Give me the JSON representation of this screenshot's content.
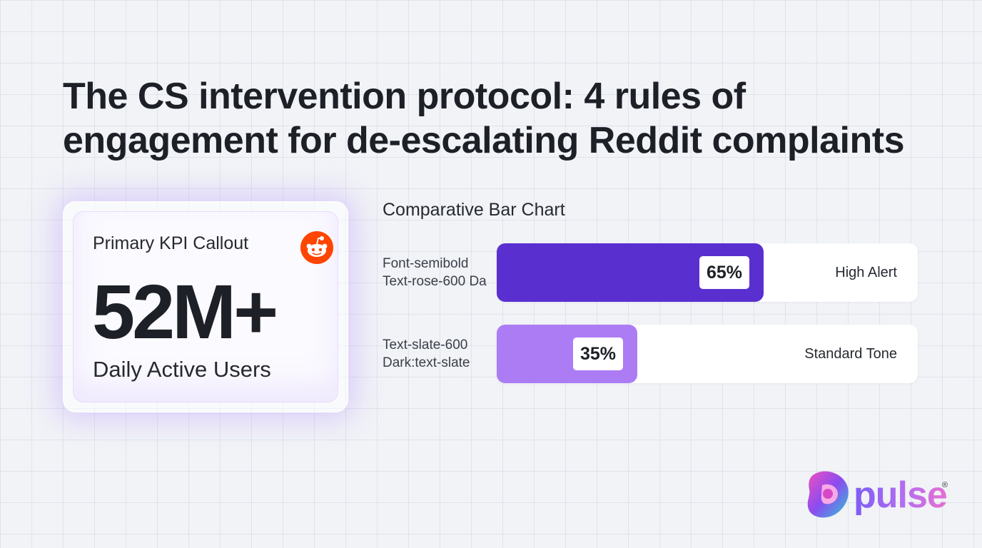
{
  "headline": {
    "line1": "The CS intervention protocol: 4 rules of",
    "line2": "engagement for de-escalating Reddit complaints"
  },
  "kpi": {
    "label": "Primary KPI Callout",
    "value": "52M+",
    "caption": "Daily Active Users",
    "icon": "reddit-icon",
    "icon_color": "#ff4500"
  },
  "chart_data": {
    "type": "bar",
    "title": "Comparative Bar Chart",
    "orientation": "horizontal",
    "unit": "%",
    "xlim": [
      0,
      100
    ],
    "categories": [
      "Font-semibold Text-rose-600 Da",
      "Text-slate-600 Dark:text-slate"
    ],
    "values": [
      65,
      35
    ],
    "rows": [
      {
        "label_lines": [
          "Font-semibold",
          "Text-rose-600 Da"
        ],
        "value": 65,
        "value_label": "65%",
        "status": "High Alert",
        "color": "#5a2fd0"
      },
      {
        "label_lines": [
          "Text-slate-600",
          "Dark:text-slate"
        ],
        "value": 35,
        "value_label": "35%",
        "status": "Standard Tone",
        "color": "#ac7cf5"
      }
    ]
  },
  "logo": {
    "text": "pulse",
    "registered": "®",
    "colors": [
      "#2fc6d6",
      "#8a4cf0",
      "#ef4fc0"
    ]
  }
}
